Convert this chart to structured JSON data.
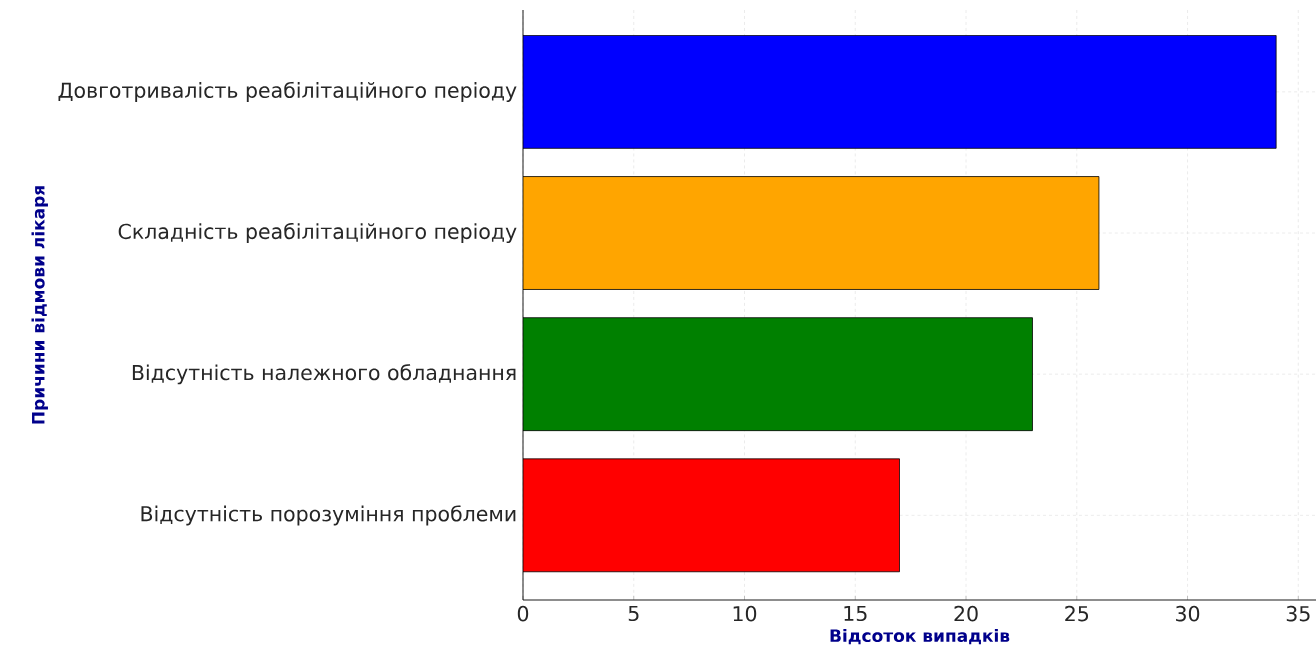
{
  "chart_data": {
    "type": "bar",
    "orientation": "horizontal",
    "categories": [
      "Довготривалість реабілітаційного періоду",
      "Складність реабілітаційного періоду",
      "Відсутність належного обладнання",
      "Відсутність порозуміння проблеми"
    ],
    "values": [
      34,
      26,
      23,
      17
    ],
    "colors": [
      "#0000ff",
      "#ffa500",
      "#008000",
      "#ff0000"
    ],
    "xlabel": "Відсоток випадків",
    "ylabel": "Причини відмови лікаря",
    "xlim": [
      0,
      35.8
    ],
    "xticks": [
      0,
      5,
      10,
      15,
      20,
      25,
      30,
      35
    ],
    "grid": true
  }
}
